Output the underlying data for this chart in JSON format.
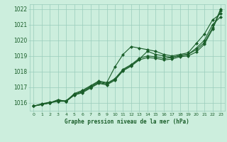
{
  "x": [
    0,
    1,
    2,
    3,
    4,
    5,
    6,
    7,
    8,
    9,
    10,
    11,
    12,
    13,
    14,
    15,
    16,
    17,
    18,
    19,
    20,
    21,
    22,
    23
  ],
  "line1": [
    1015.8,
    1015.9,
    1016.0,
    1016.2,
    1016.1,
    1016.6,
    1016.8,
    1017.1,
    1017.4,
    1017.3,
    1018.3,
    1019.1,
    1019.6,
    1019.5,
    1019.4,
    1019.3,
    1019.1,
    1019.0,
    1019.1,
    1019.2,
    1019.8,
    1020.4,
    1021.3,
    1021.7
  ],
  "line2": [
    1015.8,
    1015.9,
    1016.0,
    1016.2,
    1016.1,
    1016.5,
    1016.7,
    1017.0,
    1017.3,
    1017.2,
    1017.5,
    1018.1,
    1018.4,
    1018.8,
    1019.3,
    1019.1,
    1019.0,
    1018.9,
    1019.0,
    1019.1,
    1019.5,
    1020.0,
    1021.0,
    1021.5
  ],
  "line3": [
    1015.8,
    1015.95,
    1016.05,
    1016.1,
    1016.15,
    1016.55,
    1016.75,
    1017.05,
    1017.35,
    1017.25,
    1017.55,
    1018.15,
    1018.45,
    1018.85,
    1019.0,
    1018.95,
    1018.85,
    1018.9,
    1019.05,
    1019.1,
    1019.4,
    1019.85,
    1020.8,
    1022.0
  ],
  "line4": [
    1015.8,
    1015.9,
    1016.0,
    1016.1,
    1016.1,
    1016.5,
    1016.65,
    1016.95,
    1017.25,
    1017.15,
    1017.45,
    1018.05,
    1018.35,
    1018.75,
    1018.9,
    1018.85,
    1018.75,
    1018.8,
    1018.95,
    1019.0,
    1019.25,
    1019.75,
    1020.7,
    1021.9
  ],
  "bg_color": "#cceedd",
  "grid_color": "#99ccbb",
  "line_color": "#1a5e2a",
  "ylim_min": 1015.5,
  "ylim_max": 1022.3,
  "yticks": [
    1016,
    1017,
    1018,
    1019,
    1020,
    1021,
    1022
  ],
  "xlabel": "Graphe pression niveau de la mer (hPa)",
  "marker": "D",
  "markersize": 2,
  "linewidth": 0.8
}
